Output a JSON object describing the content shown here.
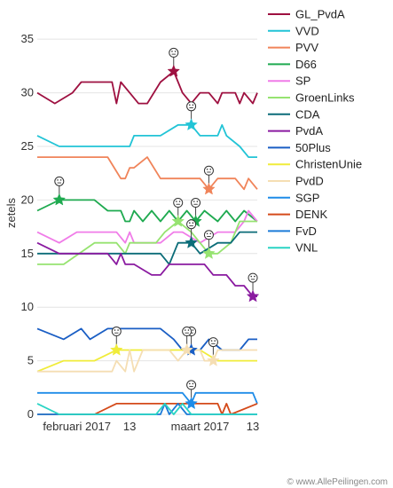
{
  "footer": {
    "credit": "© www.AllePeilingen.com"
  },
  "chart_data": {
    "type": "line",
    "ylabel": "zetels",
    "ylim": [
      0,
      37
    ],
    "y_ticks": [
      0,
      5,
      10,
      15,
      20,
      25,
      30,
      35
    ],
    "x_ticks": [
      "2017-02-01",
      "2017-02-13",
      "2017-03-01",
      "2017-03-13"
    ],
    "x_tick_labels": [
      "februari 2017",
      "13",
      "maart 2017",
      "13"
    ],
    "xlim": [
      "2017-01-23",
      "2017-03-14"
    ],
    "grid": "horizontal",
    "legend": "right",
    "series": [
      {
        "name": "GL_PvdA",
        "color": "#9e1040",
        "points": [
          [
            "2017-01-23",
            30
          ],
          [
            "2017-01-27",
            29
          ],
          [
            "2017-01-31",
            30
          ],
          [
            "2017-02-02",
            31
          ],
          [
            "2017-02-09",
            31
          ],
          [
            "2017-02-10",
            29
          ],
          [
            "2017-02-11",
            31
          ],
          [
            "2017-02-13",
            30
          ],
          [
            "2017-02-15",
            29
          ],
          [
            "2017-02-17",
            29
          ],
          [
            "2017-02-20",
            31
          ],
          [
            "2017-02-23",
            32
          ],
          [
            "2017-02-25",
            30
          ],
          [
            "2017-02-27",
            29
          ],
          [
            "2017-03-01",
            30
          ],
          [
            "2017-03-03",
            30
          ],
          [
            "2017-03-05",
            29
          ],
          [
            "2017-03-06",
            30
          ],
          [
            "2017-03-09",
            30
          ],
          [
            "2017-03-10",
            29
          ],
          [
            "2017-03-11",
            30
          ],
          [
            "2017-03-13",
            29
          ],
          [
            "2017-03-14",
            30
          ]
        ],
        "markers": [
          "2017-02-23"
        ]
      },
      {
        "name": "VVD",
        "color": "#22c4d6",
        "points": [
          [
            "2017-01-23",
            26
          ],
          [
            "2017-01-28",
            25
          ],
          [
            "2017-02-05",
            25
          ],
          [
            "2017-02-13",
            25
          ],
          [
            "2017-02-14",
            26
          ],
          [
            "2017-02-20",
            26
          ],
          [
            "2017-02-24",
            27
          ],
          [
            "2017-02-27",
            27
          ],
          [
            "2017-03-01",
            26
          ],
          [
            "2017-03-05",
            26
          ],
          [
            "2017-03-06",
            27
          ],
          [
            "2017-03-07",
            26
          ],
          [
            "2017-03-10",
            25
          ],
          [
            "2017-03-12",
            24
          ],
          [
            "2017-03-14",
            24
          ]
        ],
        "markers": [
          "2017-02-27",
          "2017-03-13"
        ]
      },
      {
        "name": "PVV",
        "color": "#f0845a",
        "points": [
          [
            "2017-01-23",
            24
          ],
          [
            "2017-02-08",
            24
          ],
          [
            "2017-02-11",
            22
          ],
          [
            "2017-02-12",
            22
          ],
          [
            "2017-02-13",
            23
          ],
          [
            "2017-02-14",
            23
          ],
          [
            "2017-02-17",
            24
          ],
          [
            "2017-02-20",
            22
          ],
          [
            "2017-02-25",
            22
          ],
          [
            "2017-03-01",
            22
          ],
          [
            "2017-03-03",
            21
          ],
          [
            "2017-03-05",
            22
          ],
          [
            "2017-03-09",
            22
          ],
          [
            "2017-03-11",
            21
          ],
          [
            "2017-03-12",
            22
          ],
          [
            "2017-03-14",
            21
          ]
        ],
        "markers": [
          "2017-03-03"
        ]
      },
      {
        "name": "D66",
        "color": "#1faa50",
        "points": [
          [
            "2017-01-23",
            19
          ],
          [
            "2017-01-28",
            20
          ],
          [
            "2017-02-05",
            20
          ],
          [
            "2017-02-08",
            19
          ],
          [
            "2017-02-11",
            19
          ],
          [
            "2017-02-12",
            18
          ],
          [
            "2017-02-13",
            18
          ],
          [
            "2017-02-14",
            19
          ],
          [
            "2017-02-16",
            18
          ],
          [
            "2017-02-18",
            19
          ],
          [
            "2017-02-20",
            18
          ],
          [
            "2017-02-22",
            19
          ],
          [
            "2017-02-24",
            18
          ],
          [
            "2017-02-26",
            19
          ],
          [
            "2017-02-28",
            18
          ],
          [
            "2017-03-02",
            19
          ],
          [
            "2017-03-05",
            18
          ],
          [
            "2017-03-07",
            19
          ],
          [
            "2017-03-09",
            18
          ],
          [
            "2017-03-11",
            19
          ],
          [
            "2017-03-14",
            18
          ]
        ],
        "markers": [
          "2017-01-28",
          "2017-02-28"
        ]
      },
      {
        "name": "SP",
        "color": "#f07ce8",
        "points": [
          [
            "2017-01-23",
            17
          ],
          [
            "2017-01-28",
            16
          ],
          [
            "2017-02-01",
            17
          ],
          [
            "2017-02-10",
            17
          ],
          [
            "2017-02-12",
            16
          ],
          [
            "2017-02-13",
            17
          ],
          [
            "2017-02-14",
            16
          ],
          [
            "2017-02-20",
            16
          ],
          [
            "2017-02-23",
            17
          ],
          [
            "2017-02-25",
            17
          ],
          [
            "2017-03-01",
            16
          ],
          [
            "2017-03-05",
            17
          ],
          [
            "2017-03-09",
            17
          ],
          [
            "2017-03-11",
            18
          ],
          [
            "2017-03-12",
            19
          ],
          [
            "2017-03-14",
            18
          ]
        ],
        "markers": []
      },
      {
        "name": "GroenLinks",
        "color": "#96e370",
        "points": [
          [
            "2017-01-23",
            14
          ],
          [
            "2017-01-29",
            14
          ],
          [
            "2017-02-05",
            16
          ],
          [
            "2017-02-10",
            16
          ],
          [
            "2017-02-12",
            15
          ],
          [
            "2017-02-13",
            16
          ],
          [
            "2017-02-19",
            16
          ],
          [
            "2017-02-21",
            17
          ],
          [
            "2017-02-24",
            18
          ],
          [
            "2017-02-27",
            17
          ],
          [
            "2017-03-01",
            16
          ],
          [
            "2017-03-03",
            15
          ],
          [
            "2017-03-05",
            15
          ],
          [
            "2017-03-08",
            16
          ],
          [
            "2017-03-10",
            18
          ],
          [
            "2017-03-14",
            18
          ]
        ],
        "markers": [
          "2017-02-24",
          "2017-03-03"
        ]
      },
      {
        "name": "CDA",
        "color": "#0b6c78",
        "points": [
          [
            "2017-01-23",
            15
          ],
          [
            "2017-02-10",
            15
          ],
          [
            "2017-02-14",
            15
          ],
          [
            "2017-02-20",
            15
          ],
          [
            "2017-02-22",
            14
          ],
          [
            "2017-02-24",
            16
          ],
          [
            "2017-02-27",
            16
          ],
          [
            "2017-03-01",
            15
          ],
          [
            "2017-03-05",
            16
          ],
          [
            "2017-03-08",
            16
          ],
          [
            "2017-03-10",
            17
          ],
          [
            "2017-03-14",
            17
          ]
        ],
        "markers": [
          "2017-02-27",
          "2017-03-12"
        ]
      },
      {
        "name": "PvdA",
        "color": "#8a1aa0",
        "points": [
          [
            "2017-01-23",
            16
          ],
          [
            "2017-01-28",
            15
          ],
          [
            "2017-02-08",
            15
          ],
          [
            "2017-02-10",
            14
          ],
          [
            "2017-02-11",
            15
          ],
          [
            "2017-02-12",
            14
          ],
          [
            "2017-02-14",
            14
          ],
          [
            "2017-02-18",
            13
          ],
          [
            "2017-02-20",
            13
          ],
          [
            "2017-02-22",
            14
          ],
          [
            "2017-02-27",
            14
          ],
          [
            "2017-03-02",
            14
          ],
          [
            "2017-03-04",
            13
          ],
          [
            "2017-03-07",
            13
          ],
          [
            "2017-03-09",
            12
          ],
          [
            "2017-03-11",
            12
          ],
          [
            "2017-03-13",
            11
          ],
          [
            "2017-03-14",
            11
          ]
        ],
        "markers": [
          "2017-03-13"
        ]
      },
      {
        "name": "50Plus",
        "color": "#1a5ec4",
        "points": [
          [
            "2017-01-23",
            8
          ],
          [
            "2017-01-29",
            7
          ],
          [
            "2017-02-02",
            8
          ],
          [
            "2017-02-04",
            7
          ],
          [
            "2017-02-08",
            8
          ],
          [
            "2017-02-20",
            8
          ],
          [
            "2017-02-23",
            7
          ],
          [
            "2017-02-25",
            6
          ],
          [
            "2017-02-27",
            6
          ],
          [
            "2017-03-01",
            6
          ],
          [
            "2017-03-03",
            7
          ],
          [
            "2017-03-06",
            6
          ],
          [
            "2017-03-10",
            6
          ],
          [
            "2017-03-12",
            7
          ],
          [
            "2017-03-14",
            7
          ]
        ],
        "markers": [
          "2017-02-27"
        ]
      },
      {
        "name": "ChristenUnie",
        "color": "#f0ec3a",
        "points": [
          [
            "2017-01-23",
            4
          ],
          [
            "2017-01-29",
            5
          ],
          [
            "2017-02-05",
            5
          ],
          [
            "2017-02-10",
            6
          ],
          [
            "2017-02-20",
            6
          ],
          [
            "2017-02-24",
            6
          ],
          [
            "2017-02-26",
            6
          ],
          [
            "2017-03-01",
            6
          ],
          [
            "2017-03-05",
            5
          ],
          [
            "2017-03-14",
            5
          ]
        ],
        "markers": [
          "2017-02-10",
          "2017-03-06"
        ]
      },
      {
        "name": "PvdD",
        "color": "#f5deb3",
        "points": [
          [
            "2017-01-23",
            4
          ],
          [
            "2017-02-09",
            4
          ],
          [
            "2017-02-10",
            5
          ],
          [
            "2017-02-12",
            4
          ],
          [
            "2017-02-13",
            6
          ],
          [
            "2017-02-14",
            4
          ],
          [
            "2017-02-16",
            6
          ],
          [
            "2017-02-22",
            6
          ],
          [
            "2017-02-24",
            5
          ],
          [
            "2017-02-26",
            6
          ],
          [
            "2017-03-01",
            6
          ],
          [
            "2017-03-02",
            5
          ],
          [
            "2017-03-04",
            5
          ],
          [
            "2017-03-05",
            6
          ],
          [
            "2017-03-14",
            6
          ]
        ],
        "markers": [
          "2017-02-26",
          "2017-03-04"
        ]
      },
      {
        "name": "SGP",
        "color": "#1e8ce8",
        "points": [
          [
            "2017-01-23",
            2
          ],
          [
            "2017-02-22",
            2
          ],
          [
            "2017-02-25",
            2
          ],
          [
            "2017-02-27",
            1
          ],
          [
            "2017-02-28",
            2
          ],
          [
            "2017-03-05",
            2
          ],
          [
            "2017-03-07",
            2
          ],
          [
            "2017-03-13",
            2
          ],
          [
            "2017-03-14",
            1
          ]
        ],
        "markers": [
          "2017-02-27"
        ]
      },
      {
        "name": "DENK",
        "color": "#d44a1a",
        "points": [
          [
            "2017-01-23",
            0
          ],
          [
            "2017-02-05",
            0
          ],
          [
            "2017-02-10",
            1
          ],
          [
            "2017-03-05",
            1
          ],
          [
            "2017-03-06",
            0
          ],
          [
            "2017-03-07",
            1
          ],
          [
            "2017-03-08",
            0
          ],
          [
            "2017-03-14",
            1
          ]
        ],
        "markers": []
      },
      {
        "name": "FvD",
        "color": "#1c7bd8",
        "points": [
          [
            "2017-01-23",
            0
          ],
          [
            "2017-02-20",
            0
          ],
          [
            "2017-02-21",
            1
          ],
          [
            "2017-02-22",
            0
          ],
          [
            "2017-02-24",
            1
          ],
          [
            "2017-02-26",
            0
          ],
          [
            "2017-03-14",
            0
          ]
        ],
        "markers": []
      },
      {
        "name": "VNL",
        "color": "#2ad4c4",
        "points": [
          [
            "2017-01-23",
            1
          ],
          [
            "2017-01-28",
            0
          ],
          [
            "2017-02-19",
            0
          ],
          [
            "2017-02-21",
            1
          ],
          [
            "2017-02-23",
            0
          ],
          [
            "2017-02-25",
            1
          ],
          [
            "2017-02-27",
            0
          ],
          [
            "2017-03-14",
            0
          ]
        ],
        "markers": []
      }
    ]
  }
}
